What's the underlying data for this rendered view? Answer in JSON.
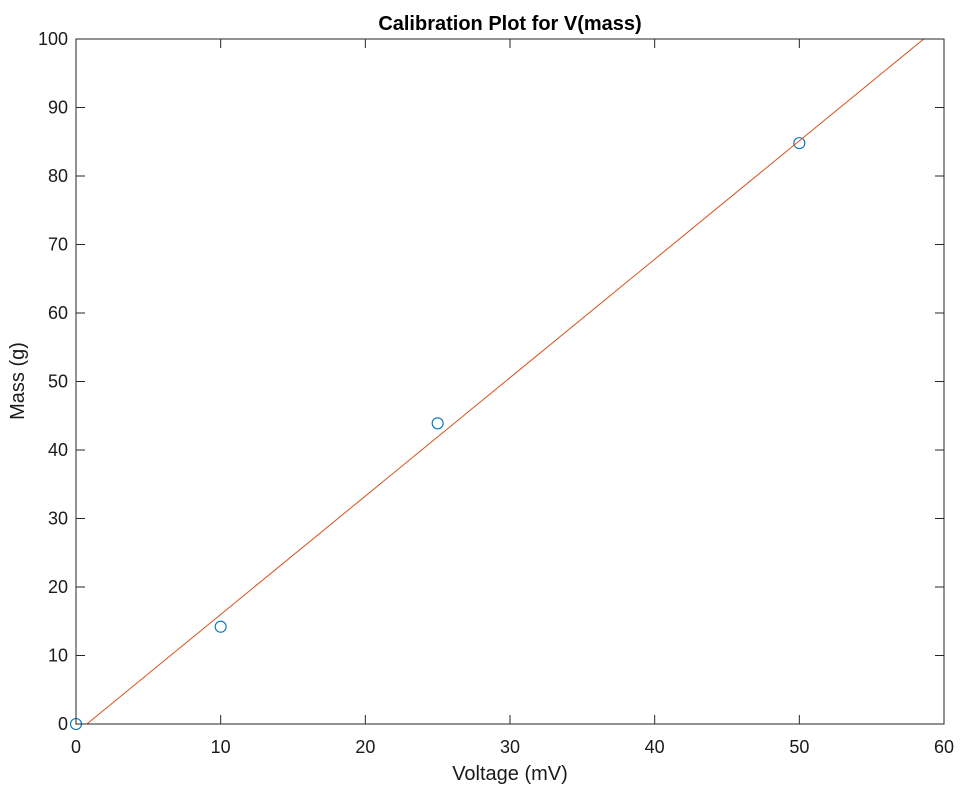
{
  "chart_data": {
    "type": "scatter",
    "title": "Calibration Plot for V(mass)",
    "xlabel": "Voltage (mV)",
    "ylabel": "Mass (g)",
    "xlim": [
      0,
      60
    ],
    "ylim": [
      0,
      100
    ],
    "xticks": [
      0,
      10,
      20,
      30,
      40,
      50,
      60
    ],
    "yticks": [
      0,
      10,
      20,
      30,
      40,
      50,
      60,
      70,
      80,
      90,
      100
    ],
    "grid": false,
    "legend": "none",
    "series": [
      {
        "kind": "scatter",
        "marker": "open-circle",
        "color": "#0072BD",
        "points": [
          {
            "x": 0,
            "y": 0
          },
          {
            "x": 10,
            "y": 14.2
          },
          {
            "x": 25,
            "y": 43.9
          },
          {
            "x": 50,
            "y": 84.8
          }
        ]
      },
      {
        "kind": "line",
        "color": "#D95319",
        "points": [
          {
            "x": 0,
            "y": -1.3
          },
          {
            "x": 58.6,
            "y": 100
          }
        ]
      }
    ]
  }
}
